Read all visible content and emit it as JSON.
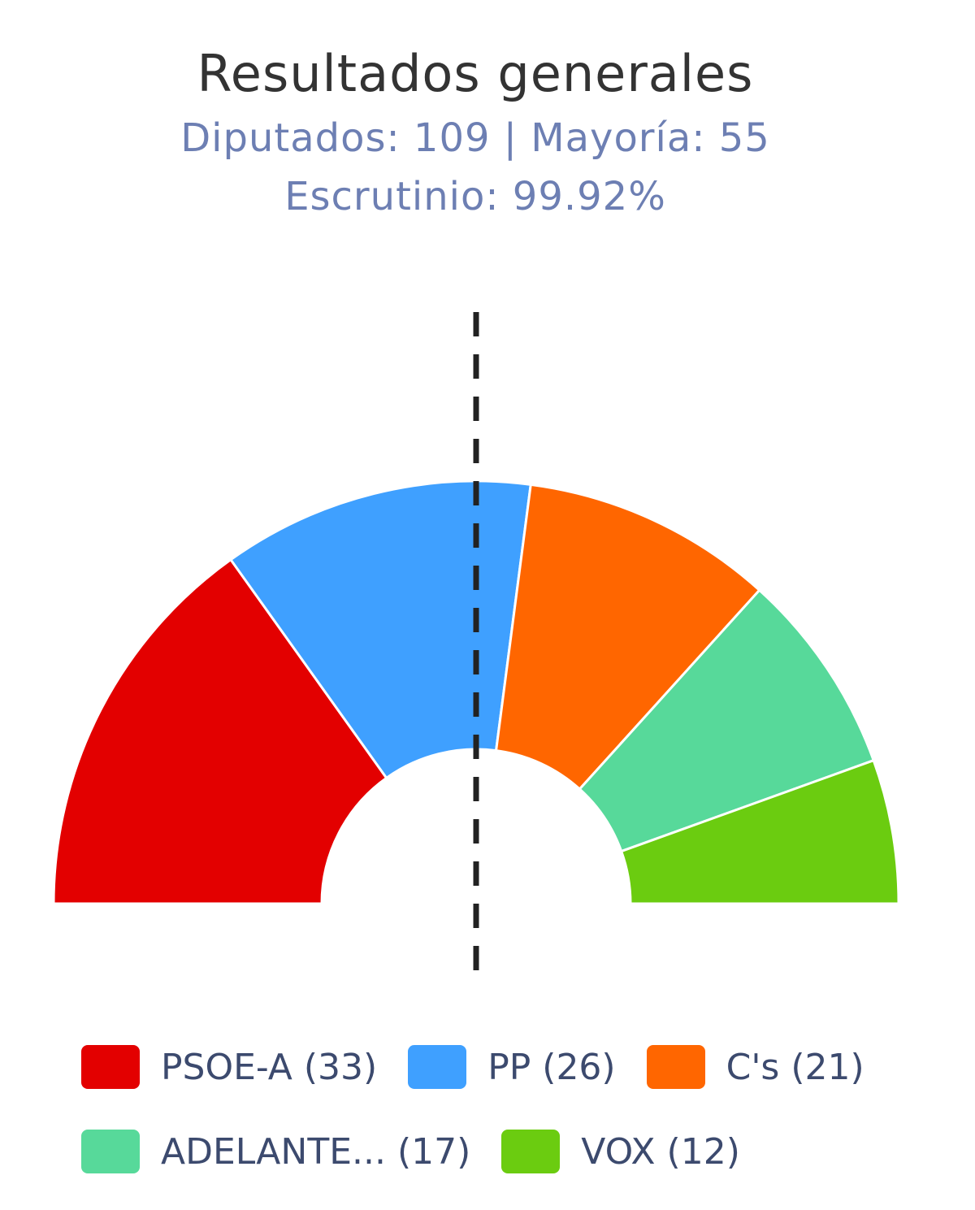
{
  "chart_data": {
    "type": "pie",
    "subtype": "semicircle-parliament",
    "title": "Resultados generales",
    "subtitle_line1": "Diputados: 109 | Mayoría: 55",
    "subtitle_line2": "Escrutinio: 99.92%",
    "total_seats": 109,
    "majority": 55,
    "scrutiny_percent": 99.92,
    "majority_line": "dashed vertical at majority threshold",
    "legend_position": "bottom",
    "series": [
      {
        "name": "PSOE-A",
        "value": 33,
        "color": "#e30000",
        "legend_label": "PSOE-A (33)"
      },
      {
        "name": "PP",
        "value": 26,
        "color": "#3fa0ff",
        "legend_label": "PP (26)"
      },
      {
        "name": "C's",
        "value": 21,
        "color": "#ff6600",
        "legend_label": "C's (21)"
      },
      {
        "name": "ADELANTE...",
        "value": 17,
        "color": "#57d99a",
        "legend_label": "ADELANTE... (17)"
      },
      {
        "name": "VOX",
        "value": 12,
        "color": "#6bcc10",
        "legend_label": "VOX (12)"
      }
    ]
  }
}
